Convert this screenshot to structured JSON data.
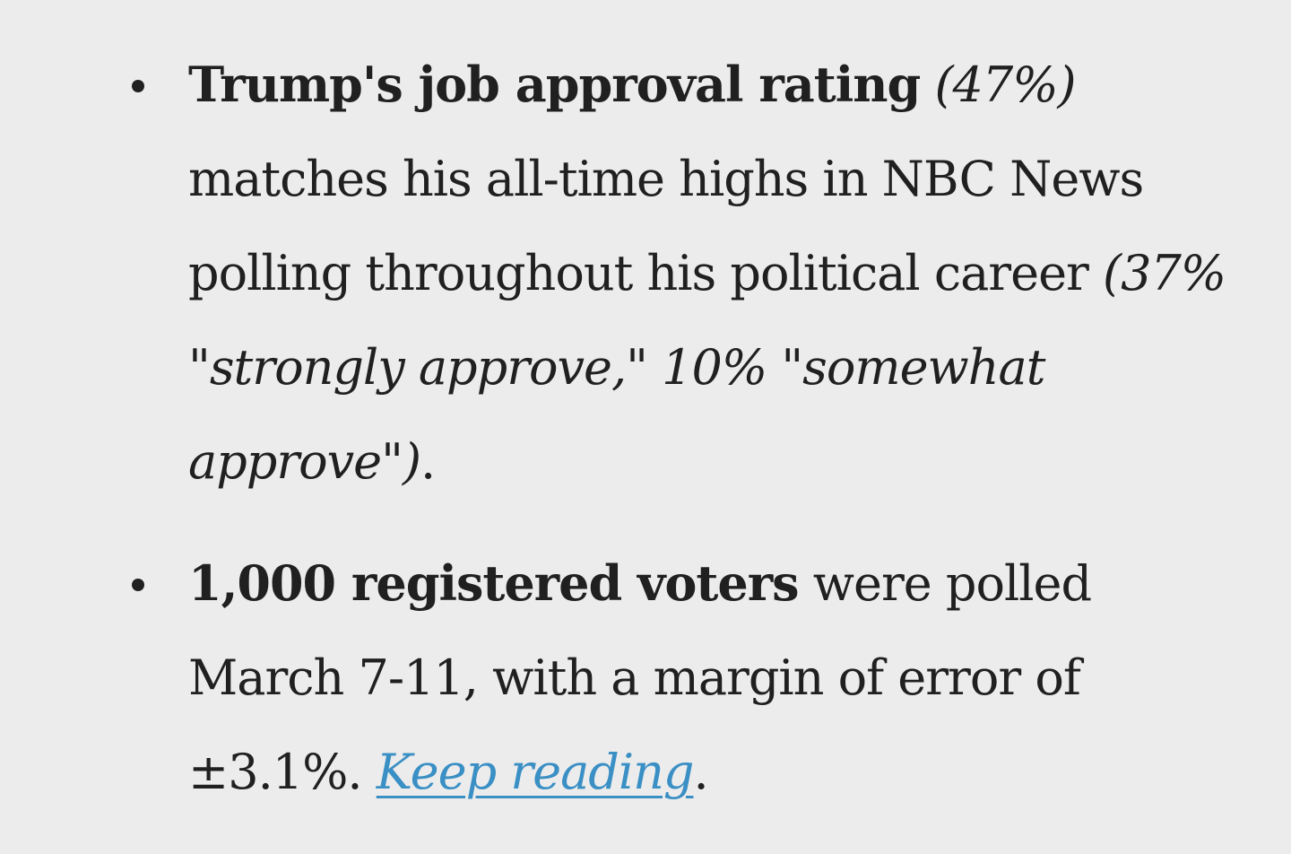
{
  "bullets": [
    {
      "lines": [
        {
          "bold": "Trump's job approval rating",
          "italic": " (47%)"
        },
        {
          "text": "matches his all-time highs in NBC News"
        },
        {
          "text": "polling throughout his political career ",
          "italic": "(37%"
        },
        {
          "italic": "\"strongly approve,\" 10% \"somewhat"
        },
        {
          "italic": "approve\")",
          "text": "."
        }
      ]
    },
    {
      "lines": [
        {
          "bold": "1,000 registered voters",
          "text": " were polled"
        },
        {
          "text": "March 7-11, with a margin of error of"
        },
        {
          "text": "±3.1%. ",
          "link": "Keep reading",
          "after": "."
        }
      ]
    }
  ],
  "colors": {
    "background": "#ececec",
    "text": "#202020",
    "link": "#3a8fc4"
  }
}
